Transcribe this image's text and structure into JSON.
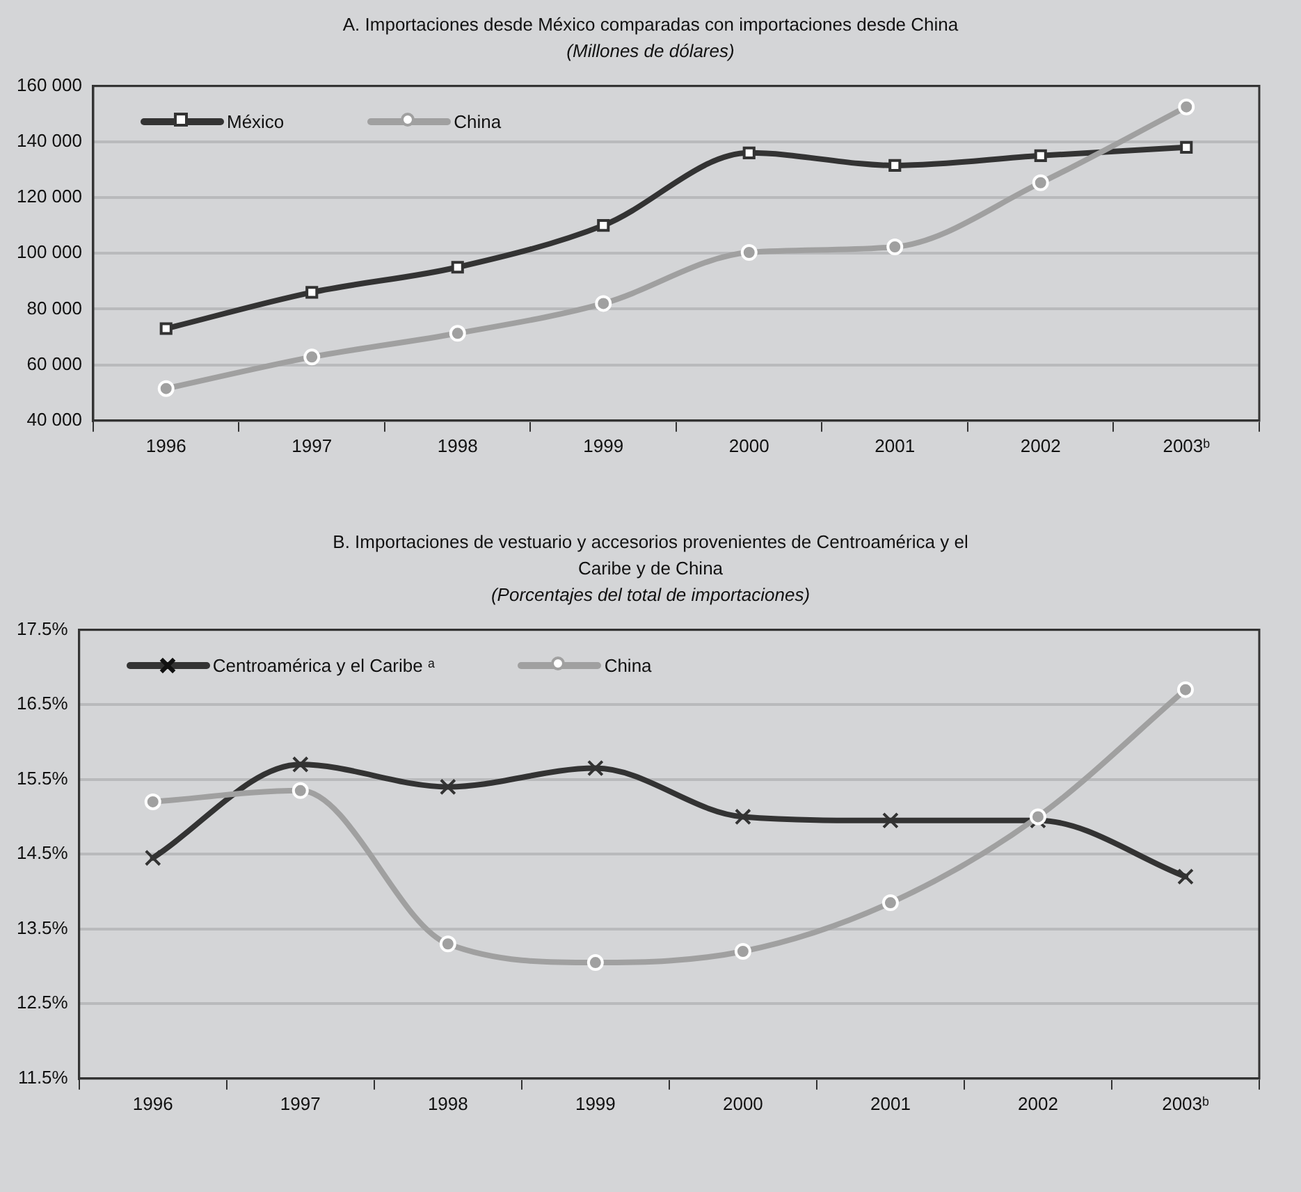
{
  "chart_data": [
    {
      "type": "line",
      "title": "A. Importaciones desde México  comparadas con importaciones desde China",
      "subtitle": "(Millones de dólares)",
      "categories": [
        "1996",
        "1997",
        "1998",
        "1999",
        "2000",
        "2001",
        "2002",
        "2003ᵇ"
      ],
      "series": [
        {
          "name": "México",
          "color": "#333333",
          "marker": "square",
          "values": [
            73000,
            86000,
            95000,
            110000,
            136000,
            131500,
            135000,
            138000
          ]
        },
        {
          "name": "China",
          "color": "#a0a0a0",
          "marker": "circle",
          "values": [
            51500,
            62800,
            71300,
            82000,
            100300,
            102300,
            125300,
            152500
          ]
        }
      ],
      "ylim": [
        40000,
        160000
      ],
      "yticks": [
        {
          "value": 40000,
          "label": "40 000"
        },
        {
          "value": 60000,
          "label": "60 000"
        },
        {
          "value": 80000,
          "label": "80 000"
        },
        {
          "value": 100000,
          "label": "100 000"
        },
        {
          "value": 120000,
          "label": "120 000"
        },
        {
          "value": 140000,
          "label": "140 000"
        },
        {
          "value": 160000,
          "label": "160 000"
        }
      ],
      "grid": "y",
      "legend": "top left"
    },
    {
      "type": "line",
      "title": "B. Importaciones de vestuario y accesorios provenientes de Centroamérica y el Caribe y de China",
      "subtitle": "(Porcentajes del total de importaciones)",
      "categories": [
        "1996",
        "1997",
        "1998",
        "1999",
        "2000",
        "2001",
        "2002",
        "2003ᵇ"
      ],
      "series": [
        {
          "name": "Centroamérica y el Caribe ᵃ",
          "color": "#333333",
          "marker": "cross",
          "values": [
            14.45,
            15.7,
            15.4,
            15.65,
            15.0,
            14.95,
            14.95,
            14.2
          ]
        },
        {
          "name": "China",
          "color": "#a0a0a0",
          "marker": "circle",
          "values": [
            15.2,
            15.35,
            13.3,
            13.05,
            13.2,
            13.85,
            15.0,
            16.7
          ]
        }
      ],
      "ylim": [
        11.5,
        17.5
      ],
      "yticks": [
        {
          "value": 11.5,
          "label": "11.5%"
        },
        {
          "value": 12.5,
          "label": "12.5%"
        },
        {
          "value": 13.5,
          "label": "13.5%"
        },
        {
          "value": 14.5,
          "label": "14.5%"
        },
        {
          "value": 15.5,
          "label": "15.5%"
        },
        {
          "value": 16.5,
          "label": "16.5%"
        },
        {
          "value": 17.5,
          "label": "17.5%"
        }
      ],
      "grid": "y",
      "legend": "top left"
    }
  ]
}
